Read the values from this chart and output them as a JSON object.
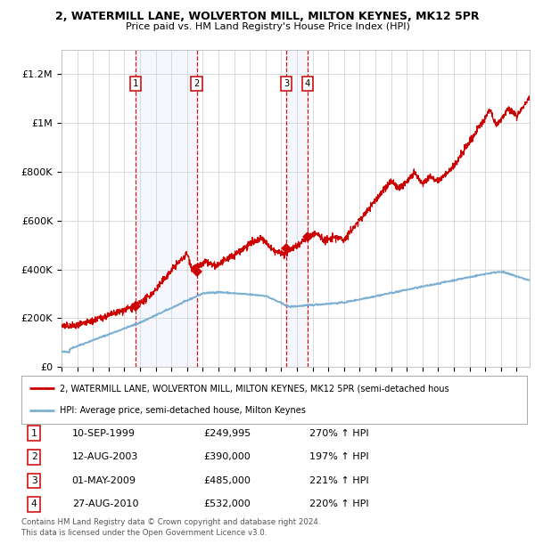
{
  "title": "2, WATERMILL LANE, WOLVERTON MILL, MILTON KEYNES, MK12 5PR",
  "subtitle": "Price paid vs. HM Land Registry's House Price Index (HPI)",
  "sale_dates_num": [
    1999.69,
    2003.61,
    2009.33,
    2010.66
  ],
  "sale_prices": [
    249995,
    390000,
    485000,
    532000
  ],
  "sale_labels": [
    "1",
    "2",
    "3",
    "4"
  ],
  "sale_dates_str": [
    "10-SEP-1999",
    "12-AUG-2003",
    "01-MAY-2009",
    "27-AUG-2010"
  ],
  "sale_price_str": [
    "£249,995",
    "£390,000",
    "£485,000",
    "£532,000"
  ],
  "sale_hpi_str": [
    "270% ↑ HPI",
    "197% ↑ HPI",
    "221% ↑ HPI",
    "220% ↑ HPI"
  ],
  "hpi_color": "#7bafd4",
  "price_color": "#cc0000",
  "marker_color": "#cc0000",
  "shading_color": "#ddeeff",
  "background_color": "#ffffff",
  "grid_color": "#cccccc",
  "ylim": [
    0,
    1300000
  ],
  "xlim_start": 1995.0,
  "xlim_end": 2024.83,
  "legend_line1": "2, WATERMILL LANE, WOLVERTON MILL, MILTON KEYNES, MK12 5PR (semi-detached hous",
  "legend_line2": "HPI: Average price, semi-detached house, Milton Keynes",
  "footer_line1": "Contains HM Land Registry data © Crown copyright and database right 2024.",
  "footer_line2": "This data is licensed under the Open Government Licence v3.0."
}
